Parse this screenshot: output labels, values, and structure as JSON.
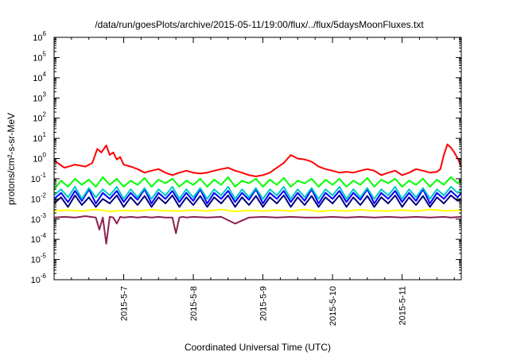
{
  "chart_data": {
    "type": "line",
    "title": "/data/run/goesPlots/archive/2015-05-11/19:00/flux/../flux/5daysMoonFluxes.txt",
    "xlabel": "Coordinated Universal Time (UTC)",
    "ylabel": "protons/cm²-s-sr-MeV",
    "x_tick_labels": [
      "2015-5-7",
      "2015-5-8",
      "2015-5-9",
      "2015-5-10",
      "2015-5-11"
    ],
    "y_scale": "log",
    "y_tick_mantissa": "10",
    "y_tick_exponents": [
      "-6",
      "-5",
      "-4",
      "-3",
      "-2",
      "-1",
      "0",
      "1",
      "2",
      "3",
      "4",
      "5",
      "6"
    ],
    "ylim": [
      1e-06,
      1000000.0
    ],
    "xlim_days": [
      0,
      5.85
    ],
    "grid": false,
    "legend": "none",
    "series": [
      {
        "color": "#ff0000",
        "x": [
          0.0,
          0.15,
          0.3,
          0.45,
          0.55,
          0.62,
          0.68,
          0.75,
          0.8,
          0.85,
          0.9,
          0.95,
          1.0,
          1.1,
          1.2,
          1.3,
          1.4,
          1.5,
          1.6,
          1.7,
          1.8,
          1.9,
          2.0,
          2.1,
          2.2,
          2.3,
          2.4,
          2.5,
          2.6,
          2.7,
          2.8,
          2.9,
          3.0,
          3.1,
          3.2,
          3.3,
          3.4,
          3.5,
          3.6,
          3.7,
          3.8,
          3.9,
          4.0,
          4.1,
          4.2,
          4.3,
          4.4,
          4.5,
          4.6,
          4.7,
          4.8,
          4.9,
          5.0,
          5.1,
          5.2,
          5.3,
          5.4,
          5.5,
          5.55,
          5.6,
          5.65,
          5.7,
          5.75,
          5.8,
          5.85
        ],
        "values": [
          0.8,
          0.35,
          0.5,
          0.4,
          0.6,
          3.0,
          2.0,
          4.5,
          1.5,
          2.0,
          0.9,
          1.2,
          0.5,
          0.4,
          0.3,
          0.2,
          0.25,
          0.3,
          0.2,
          0.15,
          0.2,
          0.25,
          0.2,
          0.18,
          0.2,
          0.25,
          0.3,
          0.35,
          0.25,
          0.2,
          0.15,
          0.13,
          0.15,
          0.2,
          0.35,
          0.6,
          1.5,
          1.0,
          0.9,
          0.7,
          0.4,
          0.3,
          0.25,
          0.2,
          0.22,
          0.2,
          0.25,
          0.3,
          0.25,
          0.15,
          0.2,
          0.25,
          0.15,
          0.2,
          0.3,
          0.25,
          0.2,
          0.22,
          0.3,
          1.5,
          5.0,
          3.5,
          2.0,
          1.0,
          0.4
        ]
      },
      {
        "color": "#00ff00",
        "x": [
          0.0,
          0.1,
          0.2,
          0.3,
          0.4,
          0.5,
          0.6,
          0.7,
          0.8,
          0.9,
          1.0,
          1.1,
          1.2,
          1.3,
          1.4,
          1.5,
          1.6,
          1.7,
          1.8,
          1.9,
          2.0,
          2.1,
          2.2,
          2.3,
          2.4,
          2.5,
          2.6,
          2.7,
          2.8,
          2.9,
          3.0,
          3.1,
          3.2,
          3.3,
          3.4,
          3.5,
          3.6,
          3.7,
          3.8,
          3.9,
          4.0,
          4.1,
          4.2,
          4.3,
          4.4,
          4.5,
          4.6,
          4.7,
          4.8,
          4.9,
          5.0,
          5.1,
          5.2,
          5.3,
          5.4,
          5.5,
          5.6,
          5.7,
          5.8,
          5.85
        ],
        "values": [
          0.03,
          0.08,
          0.04,
          0.1,
          0.05,
          0.09,
          0.04,
          0.12,
          0.05,
          0.1,
          0.04,
          0.08,
          0.05,
          0.11,
          0.04,
          0.09,
          0.06,
          0.1,
          0.04,
          0.08,
          0.05,
          0.1,
          0.04,
          0.09,
          0.05,
          0.12,
          0.04,
          0.08,
          0.06,
          0.1,
          0.04,
          0.09,
          0.05,
          0.11,
          0.04,
          0.08,
          0.06,
          0.1,
          0.04,
          0.09,
          0.05,
          0.1,
          0.04,
          0.08,
          0.05,
          0.11,
          0.04,
          0.09,
          0.06,
          0.1,
          0.04,
          0.08,
          0.05,
          0.1,
          0.04,
          0.09,
          0.05,
          0.12,
          0.06,
          0.08
        ]
      },
      {
        "color": "#00c8c8",
        "x": [
          0.0,
          0.1,
          0.2,
          0.3,
          0.4,
          0.5,
          0.6,
          0.7,
          0.8,
          0.9,
          1.0,
          1.1,
          1.2,
          1.3,
          1.4,
          1.5,
          1.6,
          1.7,
          1.8,
          1.9,
          2.0,
          2.1,
          2.2,
          2.3,
          2.4,
          2.5,
          2.6,
          2.7,
          2.8,
          2.9,
          3.0,
          3.1,
          3.2,
          3.3,
          3.4,
          3.5,
          3.6,
          3.7,
          3.8,
          3.9,
          4.0,
          4.1,
          4.2,
          4.3,
          4.4,
          4.5,
          4.6,
          4.7,
          4.8,
          4.9,
          5.0,
          5.1,
          5.2,
          5.3,
          5.4,
          5.5,
          5.6,
          5.7,
          5.8,
          5.85
        ],
        "values": [
          0.015,
          0.03,
          0.012,
          0.04,
          0.01,
          0.035,
          0.012,
          0.03,
          0.015,
          0.04,
          0.01,
          0.03,
          0.012,
          0.035,
          0.01,
          0.03,
          0.015,
          0.04,
          0.01,
          0.03,
          0.012,
          0.035,
          0.01,
          0.03,
          0.015,
          0.04,
          0.01,
          0.03,
          0.012,
          0.035,
          0.01,
          0.03,
          0.015,
          0.04,
          0.01,
          0.03,
          0.012,
          0.035,
          0.01,
          0.03,
          0.015,
          0.04,
          0.01,
          0.03,
          0.012,
          0.035,
          0.01,
          0.03,
          0.015,
          0.04,
          0.01,
          0.03,
          0.012,
          0.035,
          0.01,
          0.03,
          0.015,
          0.04,
          0.02,
          0.03
        ]
      },
      {
        "color": "#0000ff",
        "x": [
          0.0,
          0.1,
          0.2,
          0.3,
          0.4,
          0.5,
          0.6,
          0.7,
          0.8,
          0.9,
          1.0,
          1.1,
          1.2,
          1.3,
          1.4,
          1.5,
          1.6,
          1.7,
          1.8,
          1.9,
          2.0,
          2.1,
          2.2,
          2.3,
          2.4,
          2.5,
          2.6,
          2.7,
          2.8,
          2.9,
          3.0,
          3.1,
          3.2,
          3.3,
          3.4,
          3.5,
          3.6,
          3.7,
          3.8,
          3.9,
          4.0,
          4.1,
          4.2,
          4.3,
          4.4,
          4.5,
          4.6,
          4.7,
          4.8,
          4.9,
          5.0,
          5.1,
          5.2,
          5.3,
          5.4,
          5.5,
          5.6,
          5.7,
          5.8,
          5.85
        ],
        "values": [
          0.01,
          0.02,
          0.007,
          0.025,
          0.008,
          0.03,
          0.006,
          0.02,
          0.01,
          0.025,
          0.007,
          0.02,
          0.009,
          0.03,
          0.006,
          0.02,
          0.01,
          0.025,
          0.007,
          0.02,
          0.008,
          0.03,
          0.006,
          0.02,
          0.01,
          0.025,
          0.007,
          0.02,
          0.009,
          0.03,
          0.006,
          0.02,
          0.01,
          0.025,
          0.007,
          0.02,
          0.008,
          0.03,
          0.006,
          0.02,
          0.01,
          0.025,
          0.007,
          0.02,
          0.009,
          0.03,
          0.006,
          0.02,
          0.01,
          0.025,
          0.007,
          0.02,
          0.008,
          0.03,
          0.006,
          0.02,
          0.01,
          0.025,
          0.012,
          0.02
        ]
      },
      {
        "color": "#000080",
        "x": [
          0.0,
          0.1,
          0.2,
          0.3,
          0.4,
          0.5,
          0.6,
          0.7,
          0.8,
          0.9,
          1.0,
          1.1,
          1.2,
          1.3,
          1.4,
          1.5,
          1.6,
          1.7,
          1.8,
          1.9,
          2.0,
          2.1,
          2.2,
          2.3,
          2.4,
          2.5,
          2.6,
          2.7,
          2.8,
          2.9,
          3.0,
          3.1,
          3.2,
          3.3,
          3.4,
          3.5,
          3.6,
          3.7,
          3.8,
          3.9,
          4.0,
          4.1,
          4.2,
          4.3,
          4.4,
          4.5,
          4.6,
          4.7,
          4.8,
          4.9,
          5.0,
          5.1,
          5.2,
          5.3,
          5.4,
          5.5,
          5.6,
          5.7,
          5.8,
          5.85
        ],
        "values": [
          0.006,
          0.012,
          0.004,
          0.015,
          0.005,
          0.012,
          0.004,
          0.01,
          0.006,
          0.015,
          0.004,
          0.012,
          0.005,
          0.014,
          0.004,
          0.012,
          0.006,
          0.015,
          0.004,
          0.012,
          0.005,
          0.014,
          0.004,
          0.012,
          0.006,
          0.015,
          0.004,
          0.012,
          0.005,
          0.014,
          0.004,
          0.012,
          0.006,
          0.015,
          0.004,
          0.012,
          0.005,
          0.014,
          0.004,
          0.012,
          0.006,
          0.015,
          0.004,
          0.012,
          0.005,
          0.014,
          0.004,
          0.012,
          0.006,
          0.015,
          0.004,
          0.012,
          0.005,
          0.014,
          0.004,
          0.012,
          0.006,
          0.015,
          0.008,
          0.01
        ]
      },
      {
        "color": "#ffff00",
        "x": [
          0.0,
          0.2,
          0.4,
          0.6,
          0.8,
          1.0,
          1.2,
          1.4,
          1.6,
          1.8,
          2.0,
          2.2,
          2.4,
          2.6,
          2.8,
          3.0,
          3.2,
          3.4,
          3.6,
          3.8,
          4.0,
          4.2,
          4.4,
          4.6,
          4.8,
          5.0,
          5.2,
          5.4,
          5.6,
          5.85
        ],
        "values": [
          0.0025,
          0.0028,
          0.0025,
          0.003,
          0.0024,
          0.0027,
          0.0025,
          0.0029,
          0.0026,
          0.0025,
          0.0028,
          0.0025,
          0.003,
          0.0024,
          0.0027,
          0.0025,
          0.0028,
          0.0025,
          0.003,
          0.0024,
          0.0027,
          0.0025,
          0.0029,
          0.0026,
          0.0025,
          0.0028,
          0.0025,
          0.003,
          0.0026,
          0.0027
        ]
      },
      {
        "color": "#8b2252",
        "x": [
          0.0,
          0.15,
          0.3,
          0.45,
          0.6,
          0.65,
          0.7,
          0.75,
          0.8,
          0.85,
          0.9,
          0.95,
          1.0,
          1.1,
          1.2,
          1.3,
          1.4,
          1.5,
          1.6,
          1.7,
          1.75,
          1.8,
          1.85,
          1.9,
          2.0,
          2.2,
          2.4,
          2.6,
          2.8,
          3.0,
          3.2,
          3.4,
          3.6,
          3.8,
          4.0,
          4.2,
          4.4,
          4.6,
          4.8,
          5.0,
          5.2,
          5.4,
          5.6,
          5.7,
          5.85
        ],
        "values": [
          0.0012,
          0.0013,
          0.0012,
          0.0014,
          0.0012,
          0.0003,
          0.0012,
          6e-05,
          0.0013,
          0.0012,
          0.0006,
          0.0013,
          0.0012,
          0.0013,
          0.0012,
          0.0013,
          0.0012,
          0.0013,
          0.0012,
          0.0012,
          0.0002,
          0.0012,
          0.0013,
          0.0012,
          0.0013,
          0.0012,
          0.0013,
          0.0006,
          0.0012,
          0.0013,
          0.0012,
          0.0013,
          0.0012,
          0.0012,
          0.0013,
          0.0012,
          0.0013,
          0.0012,
          0.0013,
          0.0012,
          0.0013,
          0.0012,
          0.0013,
          0.0012,
          0.0013
        ]
      }
    ]
  }
}
